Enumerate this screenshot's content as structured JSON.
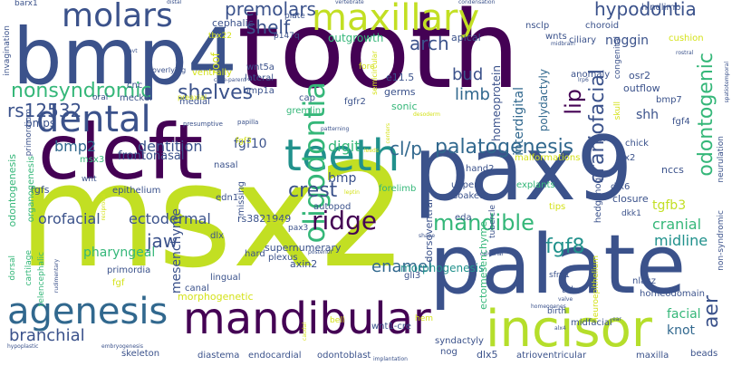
{
  "palette": {
    "dark_purple": "#440154",
    "indigo": "#3b528b",
    "blue_slate": "#31688e",
    "teal": "#21918c",
    "green": "#35b779",
    "lime": "#b5de2b",
    "yellow_green": "#d4e21a"
  },
  "words": [
    {
      "text": "tooth",
      "color": "#440154",
      "weight": 100
    },
    {
      "text": "msx2",
      "color": "#c2df23",
      "weight": 95
    },
    {
      "text": "pax9",
      "color": "#3b528b",
      "weight": 85
    },
    {
      "text": "palate",
      "color": "#3b528b",
      "weight": 75
    },
    {
      "text": "cleft",
      "color": "#440154",
      "weight": 72
    },
    {
      "text": "bmp4",
      "color": "#3b528b",
      "weight": 70
    },
    {
      "text": "incisor",
      "color": "#b5de2b",
      "weight": 55
    },
    {
      "text": "mandibular",
      "color": "#440154",
      "weight": 45
    },
    {
      "text": "teeth",
      "color": "#21918c",
      "weight": 42
    },
    {
      "text": "dental",
      "color": "#3b528b",
      "weight": 42
    },
    {
      "text": "agenesis",
      "color": "#31688e",
      "weight": 40
    },
    {
      "text": "maxillary",
      "color": "#c2df23",
      "weight": 40
    },
    {
      "text": "molars",
      "color": "#3b528b",
      "weight": 34
    },
    {
      "text": "oligodontia",
      "color": "#35b779",
      "weight": 30
    },
    {
      "text": "palatogenesis",
      "color": "#31688e",
      "weight": 25
    },
    {
      "text": "craniofacial",
      "color": "#3b528b",
      "weight": 24
    },
    {
      "text": "nonsyndromic",
      "color": "#35b779",
      "weight": 22
    },
    {
      "text": "hypodontia",
      "color": "#3b528b",
      "weight": 22
    },
    {
      "text": "odontogenic",
      "color": "#35b779",
      "weight": 22
    },
    {
      "text": "mandible",
      "color": "#35b779",
      "weight": 22
    },
    {
      "text": "rs12532",
      "color": "#3b528b",
      "weight": 20
    },
    {
      "text": "shelves",
      "color": "#3b528b",
      "weight": 20
    },
    {
      "text": "ridge",
      "color": "#440154",
      "weight": 20
    },
    {
      "text": "premolars",
      "color": "#3b528b",
      "weight": 18
    },
    {
      "text": "shelf",
      "color": "#3b528b",
      "weight": 18
    },
    {
      "text": "fgf8",
      "color": "#21918c",
      "weight": 18
    },
    {
      "text": "dentition",
      "color": "#3b528b",
      "weight": 16
    },
    {
      "text": "bmp2",
      "color": "#31688e",
      "weight": 16
    },
    {
      "text": "arch",
      "color": "#3b528b",
      "weight": 16
    },
    {
      "text": "bud",
      "color": "#3b528b",
      "weight": 16
    },
    {
      "text": "limb",
      "color": "#31688e",
      "weight": 16
    },
    {
      "text": "lip",
      "color": "#440154",
      "weight": 16
    },
    {
      "text": "cl/p",
      "color": "#31688e",
      "weight": 16
    },
    {
      "text": "digit",
      "color": "#35b779",
      "weight": 16
    },
    {
      "text": "crest",
      "color": "#3b528b",
      "weight": 16
    },
    {
      "text": "jaw",
      "color": "#3b528b",
      "weight": 16
    },
    {
      "text": "enamel",
      "color": "#31688e",
      "weight": 16
    },
    {
      "text": "orofacial",
      "color": "#3b528b",
      "weight": 16
    },
    {
      "text": "ectodermal",
      "color": "#3b528b",
      "weight": 16
    },
    {
      "text": "branchial",
      "color": "#3b528b",
      "weight": 16
    },
    {
      "text": "aer",
      "color": "#3b528b",
      "weight": 16
    },
    {
      "text": "cranial",
      "color": "#35b779",
      "weight": 16
    },
    {
      "text": "midline",
      "color": "#21918c",
      "weight": 16
    },
    {
      "text": "facial",
      "color": "#35b779",
      "weight": 14
    },
    {
      "text": "knot",
      "color": "#31688e",
      "weight": 14
    },
    {
      "text": "bmp",
      "color": "#3b528b",
      "weight": 14
    },
    {
      "text": "shh",
      "color": "#3b528b",
      "weight": 14
    },
    {
      "text": "fgf10",
      "color": "#3b528b",
      "weight": 14
    },
    {
      "text": "tgfb3",
      "color": "#c2df23",
      "weight": 14
    },
    {
      "text": "mesenchyme",
      "color": "#3b528b",
      "weight": 14
    },
    {
      "text": "interdigital",
      "color": "#31688e",
      "weight": 13
    },
    {
      "text": "homeoprotein",
      "color": "#3b528b",
      "weight": 12
    },
    {
      "text": "polydactyly",
      "color": "#31688e",
      "weight": 12
    },
    {
      "text": "noggin",
      "color": "#3b528b",
      "weight": 12
    },
    {
      "text": "outgrowth",
      "color": "#35b779",
      "weight": 12
    },
    {
      "text": "bmps",
      "color": "#3b528b",
      "weight": 12
    },
    {
      "text": "frontonasal",
      "color": "#3b528b",
      "weight": 12
    },
    {
      "text": "pharyngeal",
      "color": "#35b779",
      "weight": 12
    },
    {
      "text": "morphogenesis",
      "color": "#21918c",
      "weight": 12
    },
    {
      "text": "ectomesenchyme",
      "color": "#35b779",
      "weight": 11
    },
    {
      "text": "supernumerary",
      "color": "#3b528b",
      "weight": 11
    },
    {
      "text": "dorsoventral",
      "color": "#3b528b",
      "weight": 11
    },
    {
      "text": "odontogenesis",
      "color": "#35b779",
      "weight": 11
    },
    {
      "text": "roof",
      "color": "#d4e21a",
      "weight": 12
    },
    {
      "text": "cephalic",
      "color": "#3b528b",
      "weight": 11
    },
    {
      "text": "apical",
      "color": "#3b528b",
      "weight": 11
    },
    {
      "text": "germs",
      "color": "#3b528b",
      "weight": 11
    },
    {
      "text": "sonic",
      "color": "#35b779",
      "weight": 11
    },
    {
      "text": "e11.5",
      "color": "#3b528b",
      "weight": 11
    },
    {
      "text": "gremlin",
      "color": "#35b779",
      "weight": 10
    },
    {
      "text": "fgfr2",
      "color": "#3b528b",
      "weight": 10
    },
    {
      "text": "wnt5a",
      "color": "#3b528b",
      "weight": 10
    },
    {
      "text": "cnc",
      "color": "#3b528b",
      "weight": 10
    },
    {
      "text": "meckel",
      "color": "#3b528b",
      "weight": 10
    },
    {
      "text": "medial",
      "color": "#3b528b",
      "weight": 10
    },
    {
      "text": "cap",
      "color": "#3b528b",
      "weight": 10
    },
    {
      "text": "lateral",
      "color": "#3b528b",
      "weight": 10
    },
    {
      "text": "bmp1a",
      "color": "#3b528b",
      "weight": 10
    },
    {
      "text": "ventrally",
      "color": "#d4e21a",
      "weight": 10
    },
    {
      "text": "p147q",
      "color": "#3b528b",
      "weight": 9
    },
    {
      "text": "plate",
      "color": "#3b528b",
      "weight": 9
    },
    {
      "text": "tbx22",
      "color": "#d4e21a",
      "weight": 9
    },
    {
      "text": "nsclp",
      "color": "#3b528b",
      "weight": 10
    },
    {
      "text": "choroid",
      "color": "#3b528b",
      "weight": 10
    },
    {
      "text": "wnts",
      "color": "#3b528b",
      "weight": 10
    },
    {
      "text": "ciliary",
      "color": "#3b528b",
      "weight": 10
    },
    {
      "text": "hindlimb",
      "color": "#3b528b",
      "weight": 10
    },
    {
      "text": "cushion",
      "color": "#d4e21a",
      "weight": 10
    },
    {
      "text": "osr2",
      "color": "#3b528b",
      "weight": 11
    },
    {
      "text": "outflow",
      "color": "#3b528b",
      "weight": 11
    },
    {
      "text": "bmp7",
      "color": "#3b528b",
      "weight": 10
    },
    {
      "text": "fgf4",
      "color": "#3b528b",
      "weight": 10
    },
    {
      "text": "anomaly",
      "color": "#3b528b",
      "weight": 10
    },
    {
      "text": "chick",
      "color": "#3b528b",
      "weight": 10
    },
    {
      "text": "dlx2",
      "color": "#3b528b",
      "weight": 10
    },
    {
      "text": "nccs",
      "color": "#3b528b",
      "weight": 11
    },
    {
      "text": "dlx6",
      "color": "#3b528b",
      "weight": 10
    },
    {
      "text": "closure",
      "color": "#3b528b",
      "weight": 11
    },
    {
      "text": "hedgehog",
      "color": "#3b528b",
      "weight": 10
    },
    {
      "text": "dkk1",
      "color": "#3b528b",
      "weight": 9
    },
    {
      "text": "explants",
      "color": "#35b779",
      "weight": 10
    },
    {
      "text": "soaked",
      "color": "#3b528b",
      "weight": 10
    },
    {
      "text": "upper",
      "color": "#3b528b",
      "weight": 10
    },
    {
      "text": "eda",
      "color": "#3b528b",
      "weight": 10
    },
    {
      "text": "tips",
      "color": "#d4e21a",
      "weight": 10
    },
    {
      "text": "malformations",
      "color": "#d4e21a",
      "weight": 10
    },
    {
      "text": "hand2",
      "color": "#3b528b",
      "weight": 10
    },
    {
      "text": "nasal",
      "color": "#3b528b",
      "weight": 10
    },
    {
      "text": "missing",
      "color": "#3b528b",
      "weight": 10
    },
    {
      "text": "edn1",
      "color": "#3b528b",
      "weight": 10
    },
    {
      "text": "autopod",
      "color": "#3b528b",
      "weight": 10
    },
    {
      "text": "forelimb",
      "color": "#35b779",
      "weight": 10
    },
    {
      "text": "rs3821949",
      "color": "#3b528b",
      "weight": 11
    },
    {
      "text": "msx3",
      "color": "#35b779",
      "weight": 10
    },
    {
      "text": "fgfs",
      "color": "#3b528b",
      "weight": 11
    },
    {
      "text": "wnt",
      "color": "#3b528b",
      "weight": 9
    },
    {
      "text": "epithelium",
      "color": "#3b528b",
      "weight": 10
    },
    {
      "text": "fgf3",
      "color": "#d4e21a",
      "weight": 9
    },
    {
      "text": "dlx",
      "color": "#3b528b",
      "weight": 10
    },
    {
      "text": "hard",
      "color": "#3b528b",
      "weight": 10
    },
    {
      "text": "primordia",
      "color": "#3b528b",
      "weight": 10
    },
    {
      "text": "axin2",
      "color": "#3b528b",
      "weight": 11
    },
    {
      "text": "plexus",
      "color": "#3b528b",
      "weight": 10
    },
    {
      "text": "lingual",
      "color": "#3b528b",
      "weight": 10
    },
    {
      "text": "fgf",
      "color": "#d4e21a",
      "weight": 10
    },
    {
      "text": "canal",
      "color": "#3b528b",
      "weight": 10
    },
    {
      "text": "gli3",
      "color": "#3b528b",
      "weight": 10
    },
    {
      "text": "sfrp1",
      "color": "#3b528b",
      "weight": 9
    },
    {
      "text": "tube",
      "color": "#3b528b",
      "weight": 10
    },
    {
      "text": "nlacz",
      "color": "#3b528b",
      "weight": 10
    },
    {
      "text": "neuroepithelium",
      "color": "#d4e21a",
      "weight": 9
    },
    {
      "text": "morphogenetic",
      "color": "#d4e21a",
      "weight": 11
    },
    {
      "text": "pax3",
      "color": "#3b528b",
      "weight": 9
    },
    {
      "text": "bell",
      "color": "#d4e21a",
      "weight": 9
    },
    {
      "text": "hem",
      "color": "#d4e21a",
      "weight": 9
    },
    {
      "text": "wnt1-cre",
      "color": "#3b528b",
      "weight": 10
    },
    {
      "text": "midfacial",
      "color": "#3b528b",
      "weight": 10
    },
    {
      "text": "homeodomain",
      "color": "#3b528b",
      "weight": 10
    },
    {
      "text": "syndactyly",
      "color": "#3b528b",
      "weight": 10
    },
    {
      "text": "nog",
      "color": "#3b528b",
      "weight": 10
    },
    {
      "text": "dlx5",
      "color": "#3b528b",
      "weight": 11
    },
    {
      "text": "birth",
      "color": "#3b528b",
      "weight": 9
    },
    {
      "text": "skeleton",
      "color": "#3b528b",
      "weight": 10
    },
    {
      "text": "diastema",
      "color": "#3b528b",
      "weight": 10
    },
    {
      "text": "endocardial",
      "color": "#3b528b",
      "weight": 10
    },
    {
      "text": "odontoblast",
      "color": "#3b528b",
      "weight": 10
    },
    {
      "text": "atrioventricular",
      "color": "#3b528b",
      "weight": 10
    },
    {
      "text": "maxilla",
      "color": "#3b528b",
      "weight": 10
    },
    {
      "text": "beads",
      "color": "#3b528b",
      "weight": 10
    },
    {
      "text": "non-syndromic",
      "color": "#3b528b",
      "weight": 9
    },
    {
      "text": "neurulation",
      "color": "#3b528b",
      "weight": 9
    },
    {
      "text": "congenital",
      "color": "#3b528b",
      "weight": 9
    },
    {
      "text": "semicircular",
      "color": "#d4e21a",
      "weight": 8
    },
    {
      "text": "cartilage",
      "color": "#35b779",
      "weight": 9
    },
    {
      "text": "telencephalic",
      "color": "#35b779",
      "weight": 9
    },
    {
      "text": "dorsal",
      "color": "#35b779",
      "weight": 9
    },
    {
      "text": "organogenesis",
      "color": "#35b779",
      "weight": 10
    },
    {
      "text": "primordium",
      "color": "#3b528b",
      "weight": 9
    },
    {
      "text": "invagination",
      "color": "#3b528b",
      "weight": 9
    },
    {
      "text": "barx1",
      "color": "#3b528b",
      "weight": 9
    },
    {
      "text": "oral",
      "color": "#3b528b",
      "weight": 9
    },
    {
      "text": "overlying",
      "color": "#3b528b",
      "weight": 8
    },
    {
      "text": "preaxial",
      "color": "#d4e21a",
      "weight": 8
    },
    {
      "text": "presumptive",
      "color": "#3b528b",
      "weight": 7
    },
    {
      "text": "papilla",
      "color": "#3b528b",
      "weight": 7
    },
    {
      "text": "case-parent",
      "color": "#3b528b",
      "weight": 6
    },
    {
      "text": "hypoplastic",
      "color": "#3b528b",
      "weight": 6
    },
    {
      "text": "embryogenesis",
      "color": "#3b528b",
      "weight": 6
    },
    {
      "text": "caudal",
      "color": "#d4e21a",
      "weight": 6
    },
    {
      "text": "posterior",
      "color": "#3b528b",
      "weight": 6
    },
    {
      "text": "vertebrate",
      "color": "#3b528b",
      "weight": 6
    },
    {
      "text": "condensation",
      "color": "#3b528b",
      "weight": 6
    },
    {
      "text": "distal",
      "color": "#3b528b",
      "weight": 6
    },
    {
      "text": "midbrain",
      "color": "#3b528b",
      "weight": 6
    },
    {
      "text": "patterning",
      "color": "#3b528b",
      "weight": 6
    },
    {
      "text": "rostral",
      "color": "#3b528b",
      "weight": 6
    },
    {
      "text": "spatiotemporal",
      "color": "#3b528b",
      "weight": 6
    },
    {
      "text": "lrp6",
      "color": "#3b528b",
      "weight": 6
    },
    {
      "text": "homeogenes",
      "color": "#3b528b",
      "weight": 6
    },
    {
      "text": "valve",
      "color": "#3b528b",
      "weight": 6
    },
    {
      "text": "alx4",
      "color": "#3b528b",
      "weight": 6
    },
    {
      "text": "calvarial",
      "color": "#3b528b",
      "weight": 6
    },
    {
      "text": "ear",
      "color": "#3b528b",
      "weight": 6
    },
    {
      "text": "implantation",
      "color": "#3b528b",
      "weight": 6
    },
    {
      "text": "shape",
      "color": "#3b528b",
      "weight": 6
    },
    {
      "text": "neural",
      "color": "#d4e21a",
      "weight": 6
    },
    {
      "text": "cpo",
      "color": "#3b528b",
      "weight": 6
    },
    {
      "text": "centers",
      "color": "#d4e21a",
      "weight": 6
    },
    {
      "text": "desoderm",
      "color": "#d4e21a",
      "weight": 6
    },
    {
      "text": "reciprocal",
      "color": "#d4e21a",
      "weight": 6
    },
    {
      "text": "rudimentary",
      "color": "#3b528b",
      "weight": 6
    },
    {
      "text": "fore",
      "color": "#d4e21a",
      "weight": 9
    },
    {
      "text": "tubercle",
      "color": "#3b528b",
      "weight": 9
    },
    {
      "text": "skull",
      "color": "#d4e21a",
      "weight": 9
    },
    {
      "text": "avt",
      "color": "#3b528b",
      "weight": 6
    },
    {
      "text": "leeds",
      "color": "#d4e21a",
      "weight": 6
    },
    {
      "text": "leptin",
      "color": "#d4e21a",
      "weight": 6
    }
  ]
}
